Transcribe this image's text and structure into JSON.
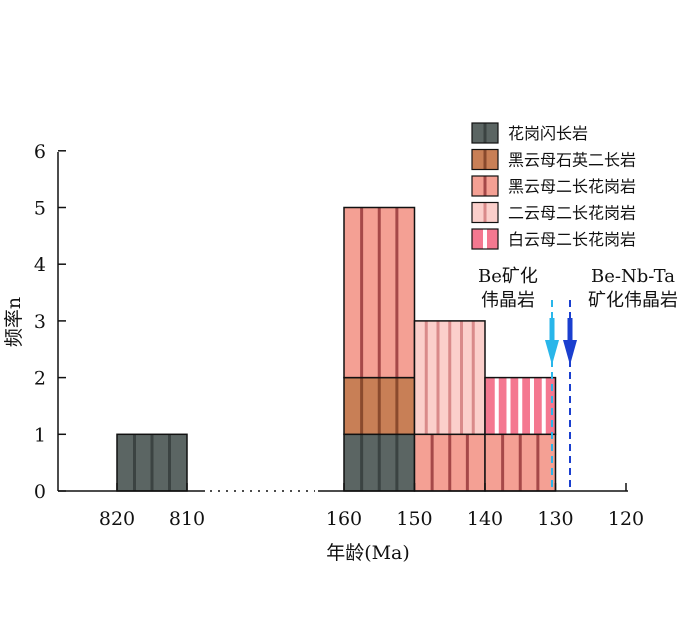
{
  "chart_data": {
    "type": "histogram-stacked",
    "xlabel": "年龄(Ma)",
    "ylabel": "频率n",
    "ylim": [
      0,
      6
    ],
    "yticks": [
      0,
      1,
      2,
      3,
      4,
      5,
      6
    ],
    "x_axis_break": true,
    "x_segments": [
      {
        "ticks": [
          820,
          810
        ]
      },
      {
        "ticks": [
          160,
          150,
          140,
          130,
          120
        ]
      }
    ],
    "legend": {
      "position": "top-right",
      "entries": [
        {
          "key": "granodiorite",
          "label": "花岗闪长岩",
          "color": "#5b6563",
          "stripe": "#3b4342"
        },
        {
          "key": "biotite-qtz-monzonite",
          "label": "黑云母石英二长岩",
          "color": "#c87f56",
          "stripe": "#8a4a2d"
        },
        {
          "key": "biotite-monzogranite",
          "label": "黑云母二长花岗岩",
          "color": "#f4a094",
          "stripe": "#a54848"
        },
        {
          "key": "two-mica-monzogranite",
          "label": "二云母二长花岗岩",
          "color": "#fbcfcb",
          "stripe": "#d98a8a"
        },
        {
          "key": "muscovite-monzogranite",
          "label": "白云母二长花岗岩",
          "color": "#f47890",
          "stripe": "#ffffff"
        }
      ]
    },
    "bars": [
      {
        "x0": 820,
        "x1": 810,
        "segments": [
          {
            "key": "granodiorite",
            "count": 1
          }
        ]
      },
      {
        "x0": 160,
        "x1": 150,
        "segments": [
          {
            "key": "granodiorite",
            "count": 1
          },
          {
            "key": "biotite-qtz-monzonite",
            "count": 1
          },
          {
            "key": "biotite-monzogranite",
            "count": 3
          }
        ]
      },
      {
        "x0": 150,
        "x1": 140,
        "segments": [
          {
            "key": "biotite-monzogranite",
            "count": 1
          },
          {
            "key": "two-mica-monzogranite",
            "count": 2
          }
        ]
      },
      {
        "x0": 140,
        "x1": 130,
        "segments": [
          {
            "key": "biotite-monzogranite",
            "count": 1
          },
          {
            "key": "muscovite-monzogranite",
            "count": 1
          }
        ]
      }
    ],
    "annotations": [
      {
        "name": "be-pegmatite",
        "lines": [
          "Be矿化",
          "伟晶岩"
        ],
        "age": 130,
        "color": "#29b6ea"
      },
      {
        "name": "be-nb-ta-pegmatite",
        "lines": [
          "Be-Nb-Ta",
          "矿化伟晶岩"
        ],
        "age": 127.5,
        "color": "#1a3fcf"
      }
    ]
  }
}
